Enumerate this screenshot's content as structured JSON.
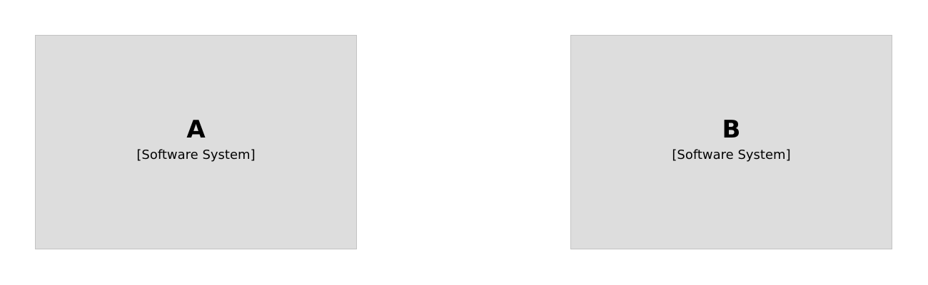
{
  "diagram": {
    "background_color": "#ffffff",
    "element_fill": "#dddddd",
    "element_border": "#c3c3c3",
    "elements": [
      {
        "name": "A",
        "type": "[Software System]"
      },
      {
        "name": "B",
        "type": "[Software System]"
      }
    ]
  }
}
